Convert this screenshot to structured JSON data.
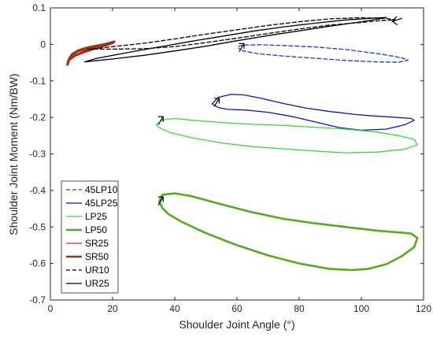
{
  "chart_data": {
    "type": "line",
    "title": "",
    "xlabel": "Shoulder Joint Angle (°)",
    "ylabel": "Shoulder Joint Moment (Nm/BW)",
    "xlim": [
      0,
      120
    ],
    "ylim": [
      -0.7,
      0.1
    ],
    "xticks": [
      0,
      20,
      40,
      60,
      80,
      100,
      120
    ],
    "yticks": [
      0.1,
      0,
      -0.1,
      -0.2,
      -0.3,
      -0.4,
      -0.5,
      -0.6,
      -0.7
    ],
    "xtick_labels": [
      "0",
      "20",
      "40",
      "60",
      "80",
      "100",
      "120"
    ],
    "ytick_labels": [
      "0.1",
      "0",
      "-0.1",
      "-0.2",
      "-0.3",
      "-0.4",
      "-0.5",
      "-0.6",
      "-0.7"
    ],
    "grid": false,
    "legend_position": "bottom-left",
    "series": [
      {
        "name": "45LP10",
        "color": "#1f3cc8",
        "dash": "dashed",
        "width": "thin",
        "x": [
          60.5,
          62,
          67,
          75,
          85,
          95,
          105,
          110,
          113,
          115,
          112,
          105,
          95,
          85,
          75,
          67,
          62,
          60.5
        ],
        "y": [
          -0.005,
          -0.002,
          -0.001,
          -0.003,
          -0.007,
          -0.014,
          -0.025,
          -0.032,
          -0.037,
          -0.043,
          -0.049,
          -0.048,
          -0.044,
          -0.038,
          -0.032,
          -0.026,
          -0.018,
          -0.01
        ],
        "arrow_at": [
          61,
          0.0
        ]
      },
      {
        "name": "45LP25",
        "color": "#1414a8",
        "dash": "solid",
        "width": "thin",
        "x": [
          52,
          54,
          58,
          62,
          68,
          75,
          82,
          90,
          98,
          104,
          110,
          116,
          117,
          114,
          108,
          100,
          93,
          86,
          78,
          70,
          63,
          57,
          54,
          52
        ],
        "y": [
          -0.163,
          -0.145,
          -0.137,
          -0.138,
          -0.148,
          -0.162,
          -0.174,
          -0.184,
          -0.192,
          -0.196,
          -0.199,
          -0.203,
          -0.208,
          -0.22,
          -0.232,
          -0.235,
          -0.228,
          -0.214,
          -0.198,
          -0.186,
          -0.18,
          -0.178,
          -0.173,
          -0.163
        ],
        "arrow_at": [
          53,
          -0.15
        ]
      },
      {
        "name": "LP25",
        "color": "#33dd33",
        "dash": "solid",
        "width": "thin",
        "x": [
          34,
          36,
          40,
          46,
          55,
          65,
          75,
          85,
          95,
          105,
          112,
          117,
          118,
          114,
          105,
          95,
          85,
          75,
          65,
          55,
          45,
          38,
          35,
          34
        ],
        "y": [
          -0.22,
          -0.207,
          -0.203,
          -0.208,
          -0.214,
          -0.219,
          -0.222,
          -0.227,
          -0.232,
          -0.24,
          -0.25,
          -0.26,
          -0.275,
          -0.287,
          -0.295,
          -0.297,
          -0.292,
          -0.286,
          -0.28,
          -0.27,
          -0.255,
          -0.24,
          -0.228,
          -0.22
        ],
        "arrow_at": [
          35,
          -0.2
        ]
      },
      {
        "name": "LP50",
        "color": "#55aa22",
        "dash": "solid",
        "width": "thick",
        "x": [
          35,
          36,
          40,
          45,
          55,
          65,
          75,
          85,
          95,
          105,
          112,
          116,
          118,
          117,
          113,
          108,
          102,
          97,
          90,
          80,
          70,
          60,
          50,
          42,
          38,
          36,
          35
        ],
        "y": [
          -0.43,
          -0.412,
          -0.408,
          -0.415,
          -0.438,
          -0.46,
          -0.478,
          -0.49,
          -0.5,
          -0.51,
          -0.515,
          -0.518,
          -0.53,
          -0.555,
          -0.58,
          -0.602,
          -0.615,
          -0.618,
          -0.615,
          -0.6,
          -0.578,
          -0.55,
          -0.517,
          -0.485,
          -0.465,
          -0.448,
          -0.43
        ],
        "arrow_at": [
          35,
          -0.42
        ]
      },
      {
        "name": "SR25",
        "color": "#cc3322",
        "dash": "solid",
        "width": "thin",
        "x": [
          5.5,
          6,
          7,
          9,
          12,
          15,
          17,
          19,
          20,
          18,
          15,
          12,
          9,
          7,
          6,
          5.5
        ],
        "y": [
          -0.05,
          -0.038,
          -0.028,
          -0.02,
          -0.013,
          -0.006,
          -0.002,
          0.002,
          0.005,
          0.0,
          -0.004,
          -0.01,
          -0.018,
          -0.026,
          -0.036,
          -0.048
        ]
      },
      {
        "name": "SR50",
        "color": "#8a3a1a",
        "dash": "solid",
        "width": "thick",
        "x": [
          5.5,
          6,
          8,
          11,
          14,
          17,
          20,
          20.5,
          18,
          15,
          12,
          9,
          7,
          5.8
        ],
        "y": [
          -0.055,
          -0.042,
          -0.03,
          -0.02,
          -0.012,
          -0.004,
          0.004,
          0.007,
          0.001,
          -0.004,
          -0.009,
          -0.017,
          -0.027,
          -0.045
        ],
        "highlight_color": "#ff1a1a"
      },
      {
        "name": "UR10",
        "color": "#000000",
        "dash": "dashed",
        "width": "thin",
        "x": [
          12,
          20,
          30,
          40,
          50,
          60,
          70,
          80,
          90,
          100,
          107,
          111,
          108,
          100,
          90,
          80,
          70,
          60,
          50,
          40,
          30,
          20,
          13
        ],
        "y": [
          -0.013,
          -0.013,
          -0.012,
          -0.006,
          0.005,
          0.017,
          0.03,
          0.042,
          0.053,
          0.06,
          0.066,
          0.067,
          0.071,
          0.073,
          0.07,
          0.062,
          0.052,
          0.04,
          0.028,
          0.015,
          0.003,
          -0.006,
          -0.013
        ],
        "arrow_at": [
          111,
          0.067
        ]
      },
      {
        "name": "UR25",
        "color": "#000000",
        "dash": "solid",
        "width": "thin",
        "x": [
          11,
          20,
          30,
          40,
          50,
          60,
          70,
          80,
          90,
          100,
          106,
          108,
          104,
          95,
          85,
          75,
          65,
          55,
          45,
          35,
          25,
          15,
          11
        ],
        "y": [
          -0.048,
          -0.04,
          -0.03,
          -0.018,
          -0.005,
          0.01,
          0.024,
          0.037,
          0.05,
          0.062,
          0.07,
          0.074,
          0.072,
          0.067,
          0.058,
          0.048,
          0.036,
          0.022,
          0.008,
          -0.007,
          -0.022,
          -0.038,
          -0.048
        ]
      }
    ]
  }
}
